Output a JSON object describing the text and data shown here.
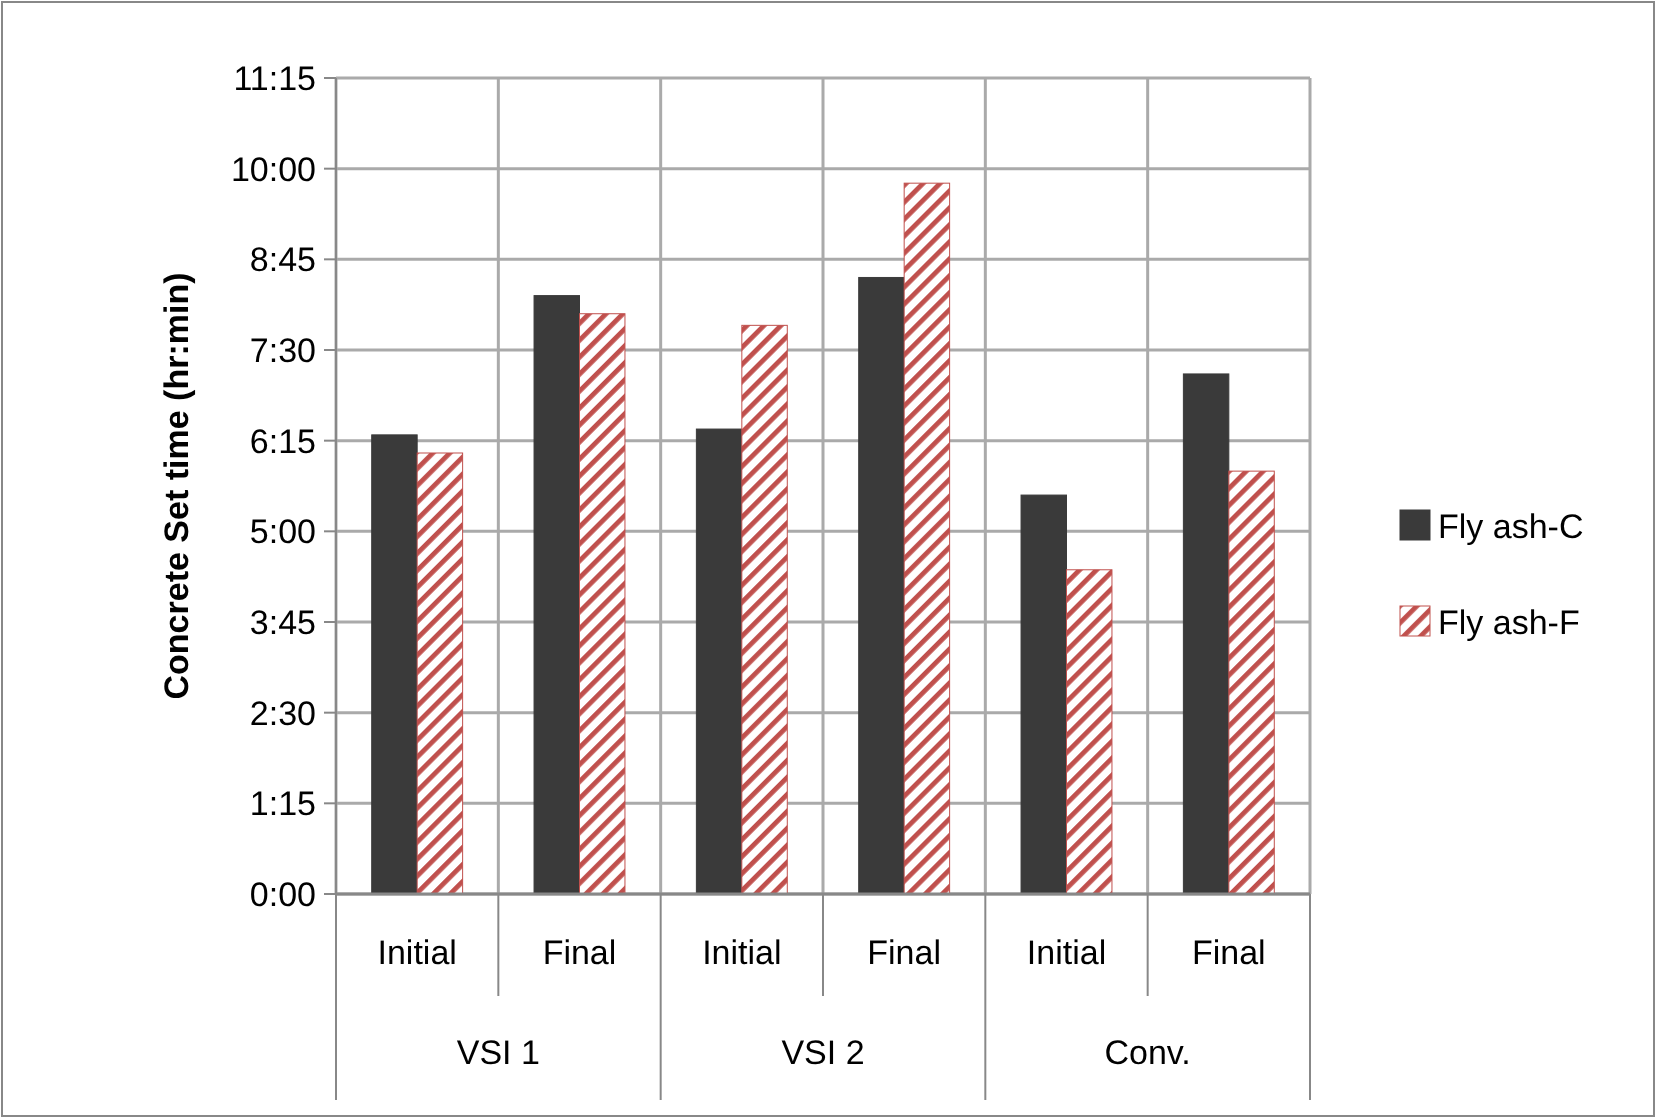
{
  "chart_data": {
    "type": "bar",
    "ylabel": "Concrete Set time (hr:min)",
    "categories": [
      "Initial",
      "Final",
      "Initial",
      "Final",
      "Initial",
      "Final"
    ],
    "series": [
      {
        "name": "Fly ash-C",
        "color": "#3a3a3a",
        "values": [
          6.33,
          8.25,
          6.41,
          8.5,
          5.5,
          7.17
        ]
      },
      {
        "name": "Fly ash-F",
        "color": "#c0504d",
        "values": [
          6.08,
          8.0,
          7.84,
          9.8,
          4.47,
          5.83
        ]
      }
    ],
    "ylim": [
      0,
      11.25
    ],
    "yticks": [
      {
        "value": 0,
        "label": "0:00"
      },
      {
        "value": 1.25,
        "label": "1:15"
      },
      {
        "value": 2.5,
        "label": "2:30"
      },
      {
        "value": 3.75,
        "label": "3:45"
      },
      {
        "value": 5,
        "label": "5:00"
      },
      {
        "value": 6.25,
        "label": "6:15"
      },
      {
        "value": 7.5,
        "label": "7:30"
      },
      {
        "value": 8.75,
        "label": "8:45"
      },
      {
        "value": 10,
        "label": "10:00"
      },
      {
        "value": 11.25,
        "label": "11:15"
      }
    ],
    "annotations": [
      "VSI 1",
      "VSI 2",
      "Conv."
    ],
    "grid": true,
    "legend": "right"
  }
}
